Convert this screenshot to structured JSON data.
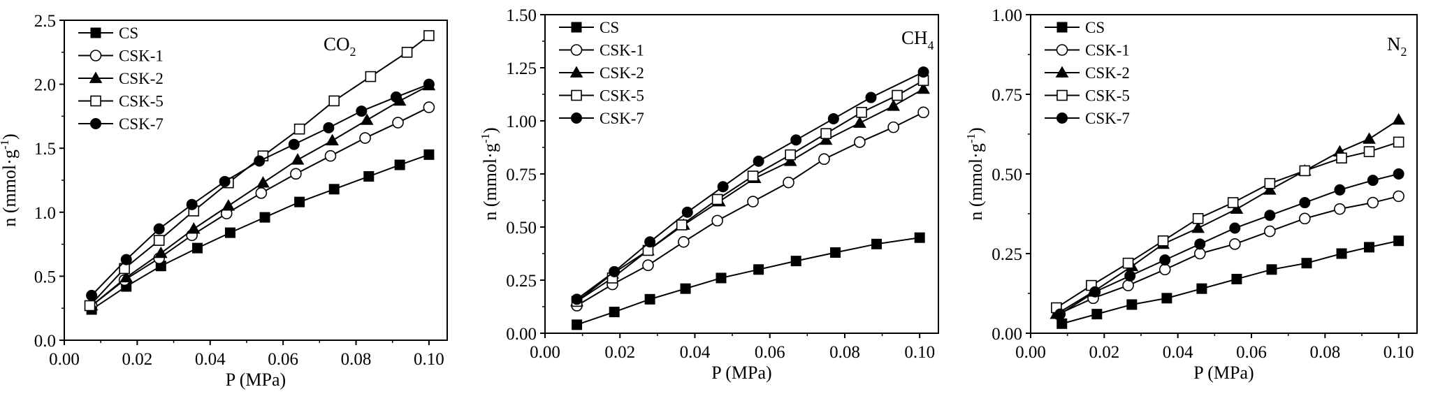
{
  "chart_data": [
    {
      "type": "line",
      "gas": {
        "main": "CO",
        "sub": "2"
      },
      "xlabel": "P (MPa)",
      "ylabel": {
        "main": "n (mmol·g",
        "sup": "-1",
        "end": ")"
      },
      "xlim": [
        0,
        0.105
      ],
      "ylim": [
        0,
        2.5
      ],
      "xticks": [
        "0.00",
        "0.02",
        "0.04",
        "0.06",
        "0.08",
        "0.10"
      ],
      "yticks": [
        "0.0",
        "0.5",
        "1.0",
        "1.5",
        "2.0",
        "2.5"
      ],
      "legend_position": "top-left",
      "series": [
        {
          "name": "CS",
          "marker": "square-filled",
          "x": [
            0.0075,
            0.017,
            0.0265,
            0.0365,
            0.0455,
            0.055,
            0.0645,
            0.074,
            0.0835,
            0.092,
            0.1
          ],
          "y": [
            0.24,
            0.42,
            0.58,
            0.72,
            0.84,
            0.96,
            1.08,
            1.18,
            1.28,
            1.37,
            1.45
          ]
        },
        {
          "name": "CSK-1",
          "marker": "circle-open",
          "x": [
            0.0075,
            0.0165,
            0.026,
            0.035,
            0.0445,
            0.054,
            0.0635,
            0.073,
            0.0825,
            0.0915,
            0.1
          ],
          "y": [
            0.27,
            0.47,
            0.64,
            0.82,
            0.99,
            1.15,
            1.3,
            1.44,
            1.58,
            1.7,
            1.82
          ]
        },
        {
          "name": "CSK-2",
          "marker": "triangle-filled",
          "x": [
            0.0075,
            0.017,
            0.0265,
            0.0355,
            0.045,
            0.0545,
            0.064,
            0.0735,
            0.083,
            0.092,
            0.1
          ],
          "y": [
            0.27,
            0.49,
            0.68,
            0.87,
            1.05,
            1.23,
            1.41,
            1.56,
            1.72,
            1.87,
            1.99
          ]
        },
        {
          "name": "CSK-5",
          "marker": "square-open",
          "x": [
            0.007,
            0.0165,
            0.026,
            0.0355,
            0.045,
            0.0545,
            0.0645,
            0.074,
            0.084,
            0.094,
            0.1
          ],
          "y": [
            0.27,
            0.56,
            0.78,
            1.01,
            1.23,
            1.44,
            1.65,
            1.87,
            2.06,
            2.25,
            2.38
          ]
        },
        {
          "name": "CSK-7",
          "marker": "circle-filled",
          "x": [
            0.0075,
            0.017,
            0.026,
            0.035,
            0.044,
            0.0535,
            0.063,
            0.0725,
            0.0815,
            0.091,
            0.1
          ],
          "y": [
            0.35,
            0.63,
            0.87,
            1.06,
            1.24,
            1.4,
            1.53,
            1.66,
            1.79,
            1.9,
            2.0
          ]
        }
      ]
    },
    {
      "type": "line",
      "gas": {
        "main": "CH",
        "sub": "4"
      },
      "xlabel": "P (MPa)",
      "ylabel": {
        "main": "n (mmol·g",
        "sup": "-1",
        "end": ")"
      },
      "xlim": [
        0,
        0.105
      ],
      "ylim": [
        0,
        1.5
      ],
      "xticks": [
        "0.00",
        "0.02",
        "0.04",
        "0.06",
        "0.08",
        "0.10"
      ],
      "yticks": [
        "0.00",
        "0.25",
        "0.50",
        "0.75",
        "1.00",
        "1.25",
        "1.50"
      ],
      "legend_position": "top-left",
      "series": [
        {
          "name": "CS",
          "marker": "square-filled",
          "x": [
            0.0085,
            0.0185,
            0.028,
            0.0375,
            0.047,
            0.057,
            0.067,
            0.0775,
            0.0885,
            0.1
          ],
          "y": [
            0.04,
            0.1,
            0.16,
            0.21,
            0.26,
            0.3,
            0.34,
            0.38,
            0.42,
            0.45
          ]
        },
        {
          "name": "CSK-1",
          "marker": "circle-open",
          "x": [
            0.0085,
            0.018,
            0.0275,
            0.037,
            0.046,
            0.0555,
            0.065,
            0.0745,
            0.084,
            0.093,
            0.101
          ],
          "y": [
            0.13,
            0.23,
            0.32,
            0.43,
            0.53,
            0.62,
            0.71,
            0.82,
            0.9,
            0.97,
            1.04
          ]
        },
        {
          "name": "CSK-2",
          "marker": "triangle-filled",
          "x": [
            0.0085,
            0.018,
            0.0275,
            0.037,
            0.0465,
            0.056,
            0.0655,
            0.075,
            0.084,
            0.093,
            0.101
          ],
          "y": [
            0.15,
            0.28,
            0.39,
            0.51,
            0.62,
            0.73,
            0.81,
            0.91,
            0.99,
            1.07,
            1.15
          ]
        },
        {
          "name": "CSK-5",
          "marker": "square-open",
          "x": [
            0.0085,
            0.018,
            0.0275,
            0.0365,
            0.046,
            0.0555,
            0.0655,
            0.075,
            0.0845,
            0.094,
            0.101
          ],
          "y": [
            0.15,
            0.26,
            0.39,
            0.51,
            0.63,
            0.74,
            0.84,
            0.94,
            1.04,
            1.12,
            1.19
          ]
        },
        {
          "name": "CSK-7",
          "marker": "circle-filled",
          "x": [
            0.0085,
            0.0185,
            0.028,
            0.038,
            0.0475,
            0.057,
            0.067,
            0.077,
            0.087,
            0.101
          ],
          "y": [
            0.16,
            0.29,
            0.43,
            0.57,
            0.69,
            0.81,
            0.91,
            1.01,
            1.11,
            1.23
          ]
        }
      ]
    },
    {
      "type": "line",
      "gas": {
        "main": "N",
        "sub": "2"
      },
      "xlabel": "P (MPa)",
      "ylabel": {
        "main": "n (mmol·g",
        "sup": "-1",
        "end": ")"
      },
      "xlim": [
        0,
        0.105
      ],
      "ylim": [
        0,
        1.0
      ],
      "xticks": [
        "0.00",
        "0.02",
        "0.04",
        "0.06",
        "0.08",
        "0.10"
      ],
      "yticks": [
        "0.00",
        "0.25",
        "0.50",
        "0.75",
        "1.00"
      ],
      "legend_position": "top-left",
      "series": [
        {
          "name": "CS",
          "marker": "square-filled",
          "x": [
            0.0085,
            0.018,
            0.0275,
            0.037,
            0.0465,
            0.056,
            0.0655,
            0.075,
            0.0845,
            0.092,
            0.1
          ],
          "y": [
            0.03,
            0.06,
            0.09,
            0.11,
            0.14,
            0.17,
            0.2,
            0.22,
            0.25,
            0.27,
            0.29
          ]
        },
        {
          "name": "CSK-1",
          "marker": "circle-open",
          "x": [
            0.0075,
            0.017,
            0.0265,
            0.0365,
            0.046,
            0.0555,
            0.065,
            0.0745,
            0.084,
            0.093,
            0.1
          ],
          "y": [
            0.06,
            0.11,
            0.15,
            0.2,
            0.25,
            0.28,
            0.32,
            0.36,
            0.39,
            0.41,
            0.43
          ]
        },
        {
          "name": "CSK-2",
          "marker": "triangle-filled",
          "x": [
            0.007,
            0.017,
            0.0275,
            0.036,
            0.0455,
            0.056,
            0.065,
            0.0745,
            0.084,
            0.092,
            0.1
          ],
          "y": [
            0.06,
            0.13,
            0.21,
            0.28,
            0.33,
            0.39,
            0.45,
            0.51,
            0.57,
            0.61,
            0.67
          ]
        },
        {
          "name": "CSK-5",
          "marker": "square-open",
          "x": [
            0.007,
            0.0165,
            0.0265,
            0.036,
            0.0455,
            0.055,
            0.065,
            0.0745,
            0.0845,
            0.092,
            0.1
          ],
          "y": [
            0.08,
            0.15,
            0.22,
            0.29,
            0.36,
            0.41,
            0.47,
            0.51,
            0.55,
            0.57,
            0.6
          ]
        },
        {
          "name": "CSK-7",
          "marker": "circle-filled",
          "x": [
            0.008,
            0.0175,
            0.027,
            0.0365,
            0.046,
            0.0555,
            0.065,
            0.0745,
            0.084,
            0.093,
            0.1
          ],
          "y": [
            0.06,
            0.13,
            0.18,
            0.23,
            0.28,
            0.33,
            0.37,
            0.41,
            0.45,
            0.48,
            0.5
          ]
        }
      ]
    }
  ]
}
